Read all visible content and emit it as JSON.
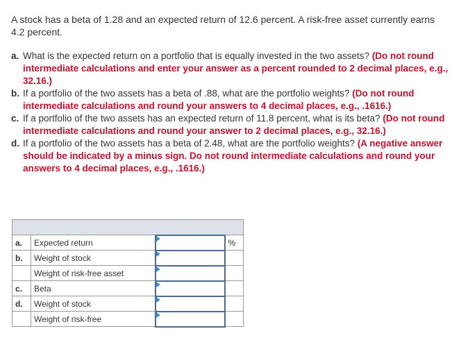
{
  "intro": "A stock has a beta of 1.28 and an expected return of 12.6 percent. A risk-free asset currently earns 4.2 percent.",
  "questions": [
    {
      "letter": "a.",
      "text": "What is the expected return on a portfolio that is equally invested in the two assets?",
      "note": "(Do not round intermediate calculations and enter your answer as a percent rounded to 2 decimal places, e.g., 32.16.)"
    },
    {
      "letter": "b.",
      "text": "If a portfolio of the two assets has a beta of .88, what are the portfolio weights?",
      "note": "(Do not round intermediate calculations and round your answers to 4 decimal places, e.g., .1616.)"
    },
    {
      "letter": "c.",
      "text": "If a portfolio of the two assets has an expected return of 11.8 percent, what is its beta?",
      "note": "(Do not round intermediate calculations and round your answer to 2 decimal places, e.g., 32.16.)"
    },
    {
      "letter": "d.",
      "text": "If a portfolio of the two assets has a beta of 2.48, what are the portfolio weights?",
      "note": "(A negative answer should be indicated by a minus sign. Do not round intermediate calculations and round your answers to 4 decimal places, e.g., .1616.)"
    }
  ],
  "table": {
    "rows": [
      {
        "letter": "a.",
        "label": "Expected return",
        "value": "",
        "unit": "%"
      },
      {
        "letter": "b.",
        "label": "Weight of stock",
        "value": "",
        "unit": ""
      },
      {
        "letter": "",
        "label": "Weight of risk-free asset",
        "value": "",
        "unit": ""
      },
      {
        "letter": "c.",
        "label": "Beta",
        "value": "",
        "unit": ""
      },
      {
        "letter": "d.",
        "label": "Weight of stock",
        "value": "",
        "unit": ""
      },
      {
        "letter": "",
        "label": "Weight of risk-free",
        "value": "",
        "unit": ""
      }
    ]
  },
  "colors": {
    "instruction": "#c8102e",
    "input_border": "#4a6a94",
    "header_bg": "#dde2ea"
  }
}
